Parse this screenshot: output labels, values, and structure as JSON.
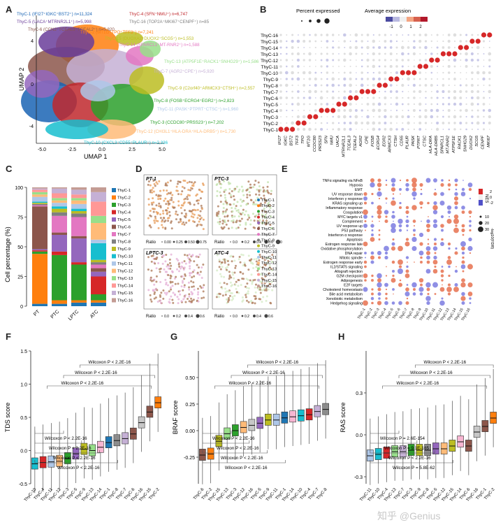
{
  "panel_letters": [
    "A",
    "B",
    "C",
    "D",
    "E",
    "F",
    "G",
    "H"
  ],
  "umap": {
    "xlabel": "UMAP 1",
    "ylabel": "UMAP 2",
    "xticks": [
      "-5.0",
      "-2.5",
      "0.0",
      "2.5",
      "5.0"
    ],
    "yticks": [
      "4",
      "0",
      "-4"
    ],
    "legend": [
      {
        "text": "ThyC-1 (IFI27⁺IGKC⁺BST2⁺) n=11,324",
        "color": "#1a64b4"
      },
      {
        "text": "ThyC-4 (SFN⁺NMU⁺) n=6,747",
        "color": "#c0282d"
      },
      {
        "text": "ThyC-5 (UACA⁺MTRNR2L1⁺) n=5,998",
        "color": "#6a3d9a"
      },
      {
        "text": "ThyC-16 (TOP2A⁺MKI67⁺CENPF⁺) n=85",
        "color": "#7f7f7f"
      },
      {
        "text": "ThyC-6 (CCN2⁺TCEAL3⁺TCEAL2⁺) n=5,820",
        "color": "#8c564b"
      },
      {
        "text": "ThyC-2 (MT1G⁺TPO⁺TFF3⁺) n=7,241",
        "color": "#ff7f0e"
      },
      {
        "text": "ThyC-15 (DUOXA2⁺DUOX2⁺SCG5⁺) n=1,553",
        "color": "#bcbd22"
      },
      {
        "text": "ThyC-14 (SPARCL1⁺MT-RNR2⁺) n=1,588",
        "color": "#e377c2"
      },
      {
        "text": "ThyC-13 (ATP5F1E⁺RACK1⁺SNHG29⁺) n=1,586",
        "color": "#98df8a"
      },
      {
        "text": "ThyC-7 (AGR2⁺CPE⁺) n=5,920",
        "color": "#c5b0d5"
      },
      {
        "text": "ThyC-9 (C2orf40⁺ARMCX3⁺CTSH⁺) n=2,557",
        "color": "#bcbd22"
      },
      {
        "text": "ThyC-8 (FOSB⁺ECRG4⁺EGR2⁺) n=2,823",
        "color": "#2ca02c"
      },
      {
        "text": "ThyC-11 (PASK⁺PTPRT⁺CTSC⁺) n=1,960",
        "color": "#aec7e8"
      },
      {
        "text": "ThyC-3 (CCDC80⁺PRSS23⁺) n=7,202",
        "color": "#2ca02c"
      },
      {
        "text": "ThyC-12 (CHI3L1⁺HLA-DRA⁺HLA-DRB5⁺) n=1,730",
        "color": "#ffbb78"
      },
      {
        "text": "ThyC-10 (CXCL3⁺CD55⁺PLAUR⁺) n=2,336",
        "color": "#17becf"
      }
    ]
  },
  "dotplot_b": {
    "legend_size_title": "Percent expressed",
    "legend_color_title": "Average expression",
    "size_ticks": [
      "0",
      "1",
      "2",
      "3"
    ],
    "color_ticks": [
      "-1",
      "0",
      "1",
      "2"
    ],
    "rows": [
      "ThyC-16",
      "ThyC-15",
      "ThyC-14",
      "ThyC-13",
      "ThyC-12",
      "ThyC-11",
      "ThyC-10",
      "ThyC-9",
      "ThyC-8",
      "ThyC-7",
      "ThyC-6",
      "ThyC-5",
      "ThyC-4",
      "ThyC-3",
      "ThyC-2",
      "ThyC-1"
    ],
    "genes": [
      "IFI27",
      "IGKC",
      "BST2",
      "TFF3",
      "TPO",
      "MT1G",
      "CCDC80",
      "PRSS23",
      "SFN",
      "NMU",
      "UACA",
      "MTRNR2L1",
      "TCEAL3",
      "TCEAL2",
      "AGR2",
      "CPE",
      "FOSB",
      "ECRG4",
      "EGR2",
      "ARMCX3",
      "CTSH",
      "CD55",
      "PLAUR",
      "PASK",
      "PTPRT",
      "CTSC",
      "HLA-DRA",
      "HLA-DRB5",
      "SPARCL1",
      "MT-RNR2",
      "ATP5F1E",
      "RACK1",
      "SNHG29",
      "DUOX2",
      "SCG5",
      "CENPF",
      "MKI67"
    ]
  },
  "chart_data": [
    {
      "type": "bar",
      "panel": "C",
      "title": "",
      "xlabel": "",
      "ylabel": "Cell percentage (%)",
      "ylim": [
        0,
        100
      ],
      "yticks": [
        "0",
        "25",
        "50",
        "75",
        "100"
      ],
      "categories": [
        "PT",
        "PTC",
        "LPTC",
        "ATC"
      ],
      "series": [
        {
          "name": "ThyC-1",
          "values": [
            2,
            2,
            3,
            3
          ]
        },
        {
          "name": "ThyC-2",
          "values": [
            42,
            3,
            2,
            2
          ]
        },
        {
          "name": "ThyC-3",
          "values": [
            2,
            38,
            30,
            5
          ]
        },
        {
          "name": "ThyC-4",
          "values": [
            1,
            3,
            2,
            15
          ]
        },
        {
          "name": "ThyC-5",
          "values": [
            1,
            14,
            20,
            4
          ]
        },
        {
          "name": "ThyC-6",
          "values": [
            36,
            2,
            2,
            3
          ]
        },
        {
          "name": "ThyC-7",
          "values": [
            1,
            14,
            16,
            3
          ]
        },
        {
          "name": "ThyC-8",
          "values": [
            1,
            3,
            3,
            2
          ]
        },
        {
          "name": "ThyC-9",
          "values": [
            1,
            3,
            2,
            2
          ]
        },
        {
          "name": "ThyC-10",
          "values": [
            1,
            2,
            2,
            14
          ]
        },
        {
          "name": "ThyC-11",
          "values": [
            4,
            3,
            4,
            3
          ]
        },
        {
          "name": "ThyC-12",
          "values": [
            2,
            2,
            3,
            14
          ]
        },
        {
          "name": "ThyC-13",
          "values": [
            2,
            2,
            2,
            6
          ]
        },
        {
          "name": "ThyC-14",
          "values": [
            2,
            4,
            3,
            12
          ]
        },
        {
          "name": "ThyC-15",
          "values": [
            1,
            4,
            4,
            8
          ]
        },
        {
          "name": "ThyC-16",
          "values": [
            1,
            1,
            2,
            4
          ]
        }
      ],
      "legend": "right"
    },
    {
      "type": "box",
      "panel": "F",
      "ylabel": "TDS score",
      "ylim": [
        -0.5,
        1.5
      ],
      "yticks": [
        "-0.5",
        "0.0",
        "0.5",
        "1.0",
        "1.5"
      ],
      "categories": [
        "ThyC-10",
        "ThyC-4",
        "ThyC-11",
        "ThyC-12",
        "ThyC-3",
        "ThyC-5",
        "ThyC-9",
        "ThyC-13",
        "ThyC-14",
        "ThyC-1",
        "ThyC-8",
        "ThyC-7",
        "ThyC-6",
        "ThyC-16",
        "ThyC-15",
        "ThyC-2"
      ],
      "medians": [
        -0.2,
        -0.18,
        -0.17,
        -0.16,
        -0.12,
        -0.05,
        0.02,
        0.0,
        0.05,
        0.12,
        0.15,
        0.18,
        0.25,
        0.42,
        0.58,
        0.72
      ],
      "colors": [
        "#17becf",
        "#d62728",
        "#aec7e8",
        "#ffbb78",
        "#2ca02c",
        "#9467bd",
        "#bcbd22",
        "#98df8a",
        "#f7b6d2",
        "#1f77b4",
        "#8c8c8c",
        "#c5b0d5",
        "#8c564b",
        "#c7c7c7",
        "#8c564b",
        "#ff7f0e"
      ],
      "annotations_top": [
        "Wilcoxon P < 2.2E-16",
        "Wilcoxon P < 2.2E-16",
        "Wilcoxon P < 2.2E-16"
      ],
      "annotations_bottom": [
        "Wilcoxon P < 2.2E-16",
        "Wilcoxon P < 2.2E-16",
        "Wilcoxon P < 2.2E-16",
        "Wilcoxon P < 2.2E-16"
      ]
    },
    {
      "type": "box",
      "panel": "G",
      "ylabel": "BRAF score",
      "ylim": [
        -0.5,
        0.75
      ],
      "yticks": [
        "-0.25",
        "0.00",
        "0.25",
        "0.50"
      ],
      "categories": [
        "ThyC-6",
        "ThyC-2",
        "ThyC-15",
        "ThyC-13",
        "ThyC-3",
        "ThyC-12",
        "ThyC-16",
        "ThyC-5",
        "ThyC-9",
        "ThyC-11",
        "ThyC-1",
        "ThyC-14",
        "ThyC-10",
        "ThyC-4",
        "ThyC-7",
        "ThyC-8"
      ],
      "medians": [
        -0.23,
        -0.22,
        -0.1,
        -0.03,
        0.0,
        0.03,
        0.05,
        0.07,
        0.1,
        0.1,
        0.12,
        0.13,
        0.14,
        0.15,
        0.18,
        0.2
      ],
      "colors": [
        "#8c564b",
        "#ff7f0e",
        "#bcbd22",
        "#98df8a",
        "#2ca02c",
        "#ffbb78",
        "#c7c7c7",
        "#9467bd",
        "#bcbd22",
        "#aec7e8",
        "#1f77b4",
        "#f7b6d2",
        "#17becf",
        "#d62728",
        "#c5b0d5",
        "#8c8c8c"
      ],
      "annotations_top": [
        "Wilcoxon P < 2.2E-16",
        "Wilcoxon P < 2.2E-16",
        "Wilcoxon P < 2.2E-16"
      ],
      "annotations_bottom": [
        "Wilcoxon P < 2.2E-16",
        "Wilcoxon P < 2.2E-16",
        "Wilcoxon P < 2.2E-16",
        "Wilcoxon P < 2.2E-16"
      ]
    },
    {
      "type": "box",
      "panel": "H",
      "ylabel": "RAS score",
      "ylim": [
        -0.35,
        0.6
      ],
      "yticks": [
        "-0.3",
        "0.0",
        "0.3"
      ],
      "categories": [
        "ThyC-11",
        "ThyC-10",
        "ThyC-4",
        "ThyC-13",
        "ThyC-7",
        "ThyC-3",
        "ThyC-9",
        "ThyC-8",
        "ThyC-5",
        "ThyC-12",
        "ThyC-15",
        "ThyC-14",
        "ThyC-6",
        "ThyC-16",
        "ThyC-1",
        "ThyC-2"
      ],
      "medians": [
        -0.15,
        -0.14,
        -0.13,
        -0.12,
        -0.12,
        -0.11,
        -0.11,
        -0.11,
        -0.1,
        -0.1,
        -0.08,
        -0.05,
        -0.08,
        0.02,
        0.06,
        0.12
      ],
      "colors": [
        "#aec7e8",
        "#17becf",
        "#d62728",
        "#98df8a",
        "#c5b0d5",
        "#2ca02c",
        "#bcbd22",
        "#8c8c8c",
        "#9467bd",
        "#ffbb78",
        "#bcbd22",
        "#f7b6d2",
        "#8c564b",
        "#c7c7c7",
        "#8c564b",
        "#ff7f0e"
      ],
      "annotations_top": [
        "Wilcoxon P < 2.2E-16",
        "Wilcoxon P < 2.2E-16",
        "Wilcoxon P < 2.2E-16"
      ],
      "annotations_bottom": [
        "Wilcoxon P = 2.6E-154",
        "Wilcoxon P = 9.1E-165",
        "Wilcoxon P < 2.2E-16",
        "Wilcoxon P = 5.8E-62"
      ]
    }
  ],
  "spatial_d": {
    "samples": [
      "PT-1",
      "PTC-3",
      "LPTC-3",
      "ATC-4"
    ],
    "ratio_label": "Ratio",
    "ratio_ticks_a": [
      "0.00",
      "0.25",
      "0.50",
      "0.75"
    ],
    "ratio_ticks_b": [
      "0.0",
      "0.2",
      "0.4",
      "0.6",
      "0.8"
    ],
    "ratio_ticks_c": [
      "0.0",
      "0.2",
      "0.4",
      "0.6"
    ],
    "legend": [
      "ThyC-1",
      "ThyC-2",
      "ThyC-3",
      "ThyC-4",
      "ThyC-5",
      "ThyC-6",
      "ThyC-7",
      "ThyC-8",
      "ThyC-9",
      "ThyC-10",
      "ThyC-11",
      "ThyC-12",
      "ThyC-13",
      "ThyC-14",
      "ThyC-15",
      "ThyC-16"
    ]
  },
  "pathway_e": {
    "rows": [
      "TNFα signaling via NFκB",
      "Hypoxia",
      "EMT",
      "UV response down",
      "Interferon γ response",
      "KRAS signaling up",
      "Inflammatory response",
      "Coagulation",
      "MYC targets v1",
      "Complement",
      "UV response up",
      "P53 pathway",
      "Interferon α response",
      "Apoptosis",
      "Estrogen response late",
      "Oxidative phosphorylation",
      "DNA repair",
      "Mitotic spindle",
      "Estrogen response early",
      "IL2/STAT5 signaling",
      "Allograft rejection",
      "G2M checkpoint",
      "Adipogenesis",
      "E2F targets",
      "Cholesterol homeostasis",
      "Bile acid metabolism",
      "Xenobiotic metabolism",
      "Hedgehog signaling"
    ],
    "cols": [
      "ThyC-1",
      "ThyC-2",
      "ThyC-3",
      "ThyC-4",
      "ThyC-5",
      "ThyC-6",
      "ThyC-7",
      "ThyC-8",
      "ThyC-9",
      "ThyC-10",
      "ThyC-11",
      "ThyC-12",
      "ThyC-13",
      "ThyC-14",
      "ThyC-15",
      "ThyC-16"
    ],
    "nes_label": "NES",
    "nes_ticks": [
      "2",
      "0",
      "-2"
    ],
    "size_label": "-log10(FDR)",
    "size_ticks": [
      "10",
      "20",
      "30"
    ]
  },
  "watermark": "知乎 @Genius"
}
